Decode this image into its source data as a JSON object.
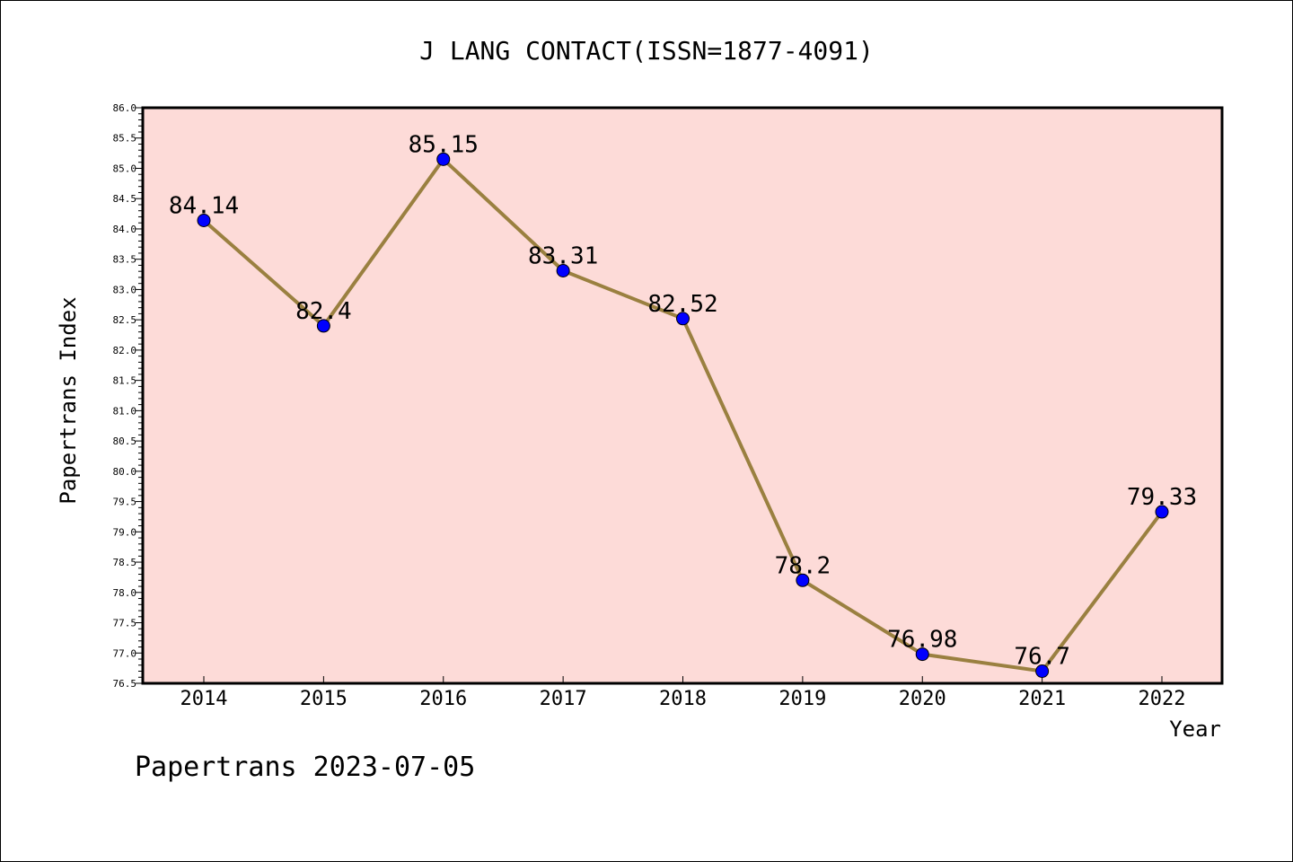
{
  "chart_data": {
    "type": "line",
    "title": "J LANG CONTACT(ISSN=1877-4091)",
    "xlabel": "Year",
    "ylabel": "Papertrans Index",
    "categories": [
      "2014",
      "2015",
      "2016",
      "2017",
      "2018",
      "2019",
      "2020",
      "2021",
      "2022"
    ],
    "values": [
      84.14,
      82.4,
      85.15,
      83.31,
      82.52,
      78.2,
      76.98,
      76.7,
      79.33
    ],
    "data_labels": [
      "84.14",
      "82.4",
      "85.15",
      "83.31",
      "82.52",
      "78.2",
      "76.98",
      "76.7",
      "79.33"
    ],
    "ylim": [
      76.5,
      86.0
    ],
    "y_ticks": [
      "76.5",
      "77.0",
      "77.5",
      "78.0",
      "78.5",
      "79.0",
      "79.5",
      "80.0",
      "80.5",
      "81.0",
      "81.5",
      "82.0",
      "82.5",
      "83.0",
      "83.5",
      "84.0",
      "84.5",
      "85.0",
      "85.5",
      "86.0"
    ],
    "grid": false,
    "colors": {
      "plot_background": "#fddbd8",
      "line": "#9a8040",
      "marker": "#0000ff"
    }
  },
  "footer": {
    "text": "Papertrans 2023-07-05"
  }
}
